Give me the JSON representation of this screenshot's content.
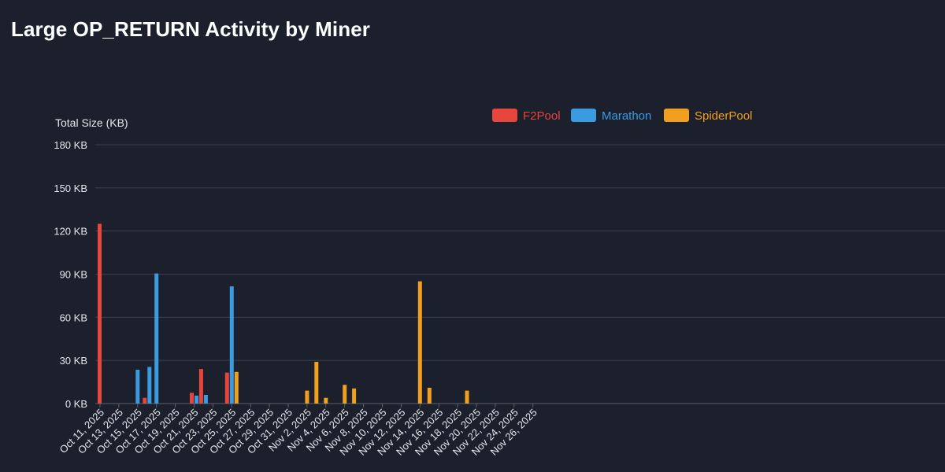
{
  "title": "Large OP_RETURN Activity by Miner",
  "chart_data": {
    "type": "bar",
    "ylabel": "Total Size (KB)",
    "ylim": [
      0,
      180
    ],
    "yticks": [
      0,
      30,
      60,
      90,
      120,
      150,
      180
    ],
    "ytick_suffix": " KB",
    "grid": true,
    "legend_position": "top-center",
    "x_start": "Oct 11, 2025",
    "x_end": "Nov 25, 2025",
    "x_tick_labels": [
      "Oct 11, 2025",
      "Oct 13, 2025",
      "Oct 15, 2025",
      "Oct 17, 2025",
      "Oct 19, 2025",
      "Oct 21, 2025",
      "Oct 23, 2025",
      "Oct 25, 2025",
      "Oct 27, 2025",
      "Oct 29, 2025",
      "Oct 31, 2025",
      "Nov 2, 2025",
      "Nov 4, 2025",
      "Nov 6, 2025",
      "Nov 8, 2025",
      "Nov 10, 2025",
      "Nov 12, 2025",
      "Nov 14, 2025",
      "Nov 16, 2025",
      "Nov 18, 2025",
      "Nov 20, 2025",
      "Nov 22, 2025",
      "Nov 24, 2025",
      "Nov 26, 2025"
    ],
    "series": [
      {
        "name": "F2Pool",
        "color": "#e8453c",
        "points": [
          {
            "x": "Oct 11, 2025",
            "y": 125
          },
          {
            "x": "Oct 16, 2025",
            "y": 4
          },
          {
            "x": "Oct 21, 2025",
            "y": 7.5
          },
          {
            "x": "Oct 22, 2025",
            "y": 24
          },
          {
            "x": "Oct 25, 2025",
            "y": 21.5
          }
        ]
      },
      {
        "name": "Marathon",
        "color": "#3b9be0",
        "points": [
          {
            "x": "Oct 15, 2025",
            "y": 23.5
          },
          {
            "x": "Oct 16, 2025",
            "y": 25.5
          },
          {
            "x": "Oct 17, 2025",
            "y": 90.5
          },
          {
            "x": "Oct 21, 2025",
            "y": 5.5
          },
          {
            "x": "Oct 22, 2025",
            "y": 6
          },
          {
            "x": "Oct 25, 2025",
            "y": 81.5
          }
        ]
      },
      {
        "name": "SpiderPool",
        "color": "#f19f1e",
        "points": [
          {
            "x": "Oct 25, 2025",
            "y": 22
          },
          {
            "x": "Nov 2, 2025",
            "y": 9
          },
          {
            "x": "Nov 3, 2025",
            "y": 29
          },
          {
            "x": "Nov 4, 2025",
            "y": 4
          },
          {
            "x": "Nov 6, 2025",
            "y": 13
          },
          {
            "x": "Nov 7, 2025",
            "y": 10.5
          },
          {
            "x": "Nov 14, 2025",
            "y": 85
          },
          {
            "x": "Nov 15, 2025",
            "y": 11
          },
          {
            "x": "Nov 19, 2025",
            "y": 9
          }
        ]
      }
    ]
  }
}
